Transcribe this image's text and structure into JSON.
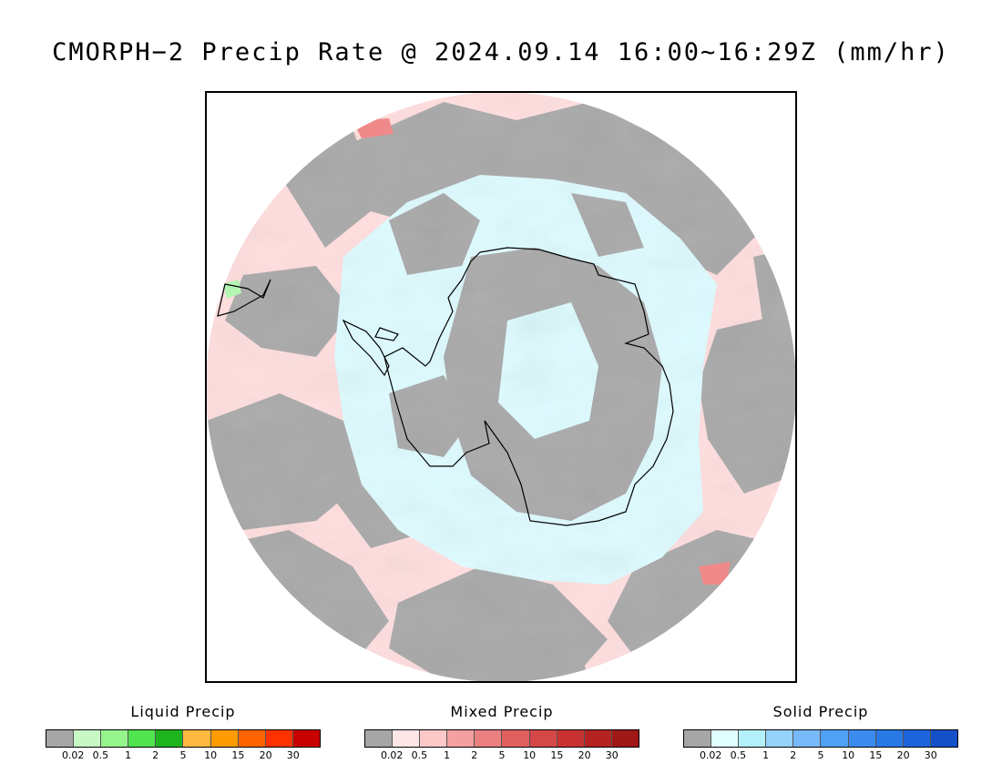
{
  "title": "CMORPH−2 Precip Rate @ 2024.09.14 16:00~16:29Z (mm/hr)",
  "map": {
    "projection": "south-polar-stereographic",
    "colors": {
      "ocean_noprecip": "#a9a9a9",
      "mixed_light": "#ffdede",
      "solid_light": "#ddfbff",
      "mixed_mod": "#f08a8a",
      "liquid_light": "#b3f5b3",
      "coastline": "#000000",
      "frame": "#000000"
    }
  },
  "legends": [
    {
      "title": "Liquid Precip",
      "colors": [
        "#a6a6a6",
        "#c8f9c4",
        "#96f48c",
        "#50e450",
        "#1eb41e",
        "#fdb840",
        "#fd9b00",
        "#fd6400",
        "#fd3200",
        "#c80000"
      ],
      "ticks": [
        "0.02",
        "0.5",
        "1",
        "2",
        "5",
        "10",
        "15",
        "20",
        "30"
      ]
    },
    {
      "title": "Mixed Precip",
      "colors": [
        "#a6a6a6",
        "#fee6e6",
        "#fdc8c8",
        "#f5a0a0",
        "#ea8080",
        "#e06060",
        "#d54848",
        "#c83232",
        "#b42222",
        "#a01818"
      ],
      "ticks": [
        "0.02",
        "0.5",
        "1",
        "2",
        "5",
        "10",
        "15",
        "20",
        "30"
      ]
    },
    {
      "title": "Solid Precip",
      "colors": [
        "#a6a6a6",
        "#e0ffff",
        "#b4f0fa",
        "#96d2fa",
        "#78b9fa",
        "#50a0f5",
        "#3c8cf0",
        "#2878e6",
        "#1e64dc",
        "#1450c8"
      ],
      "ticks": [
        "0.02",
        "0.5",
        "1",
        "2",
        "5",
        "10",
        "15",
        "20",
        "30"
      ]
    }
  ]
}
